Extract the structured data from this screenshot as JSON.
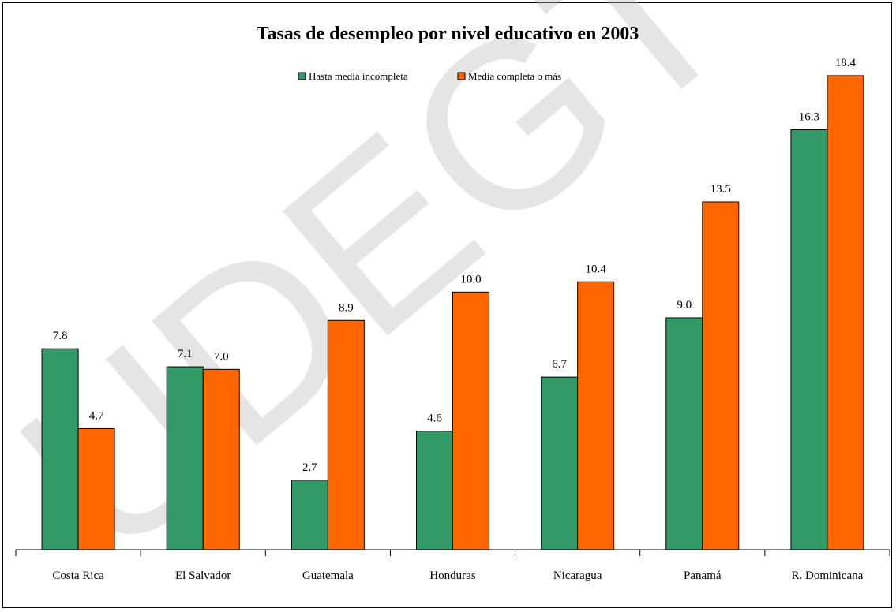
{
  "chart_data": {
    "type": "bar",
    "title": "Tasas de desempleo por nivel educativo en 2003",
    "categories": [
      "Costa Rica",
      "El Salvador",
      "Guatemala",
      "Honduras",
      "Nicaragua",
      "Panamá",
      "R. Dominicana"
    ],
    "series": [
      {
        "name": "Hasta media incompleta",
        "color": "#339966",
        "values": [
          7.8,
          7.1,
          2.7,
          4.6,
          6.7,
          9.0,
          16.3
        ]
      },
      {
        "name": "Media completa o más",
        "color": "#ff6600",
        "values": [
          4.7,
          7.0,
          8.9,
          10.0,
          10.4,
          13.5,
          18.4
        ]
      }
    ],
    "ylim": [
      0,
      19.5
    ],
    "value_decimals": 1,
    "grid": false,
    "legend_position": "top-center",
    "watermark": "UDEGT"
  }
}
